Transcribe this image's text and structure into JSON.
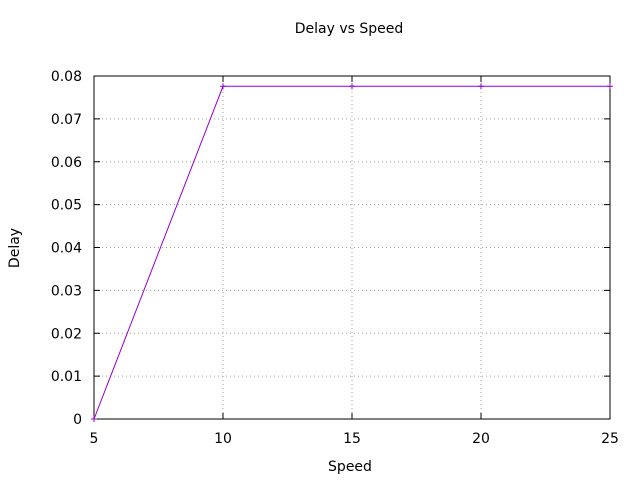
{
  "chart_data": {
    "type": "line",
    "title": "Delay vs Speed",
    "xlabel": "Speed",
    "ylabel": "Delay",
    "xlim": [
      5,
      25
    ],
    "ylim": [
      0,
      0.08
    ],
    "xticks": [
      5,
      10,
      15,
      20,
      25
    ],
    "xtick_labels": [
      "5",
      "10",
      "15",
      "20",
      "25"
    ],
    "yticks": [
      0,
      0.01,
      0.02,
      0.03,
      0.04,
      0.05,
      0.06,
      0.07,
      0.08
    ],
    "ytick_labels": [
      "0",
      "0.01",
      "0.02",
      "0.03",
      "0.04",
      "0.05",
      "0.06",
      "0.07",
      "0.08"
    ],
    "grid": true,
    "legend": "none",
    "series": [
      {
        "color": "#9400d3",
        "x": [
          5,
          10,
          15,
          20,
          25
        ],
        "y": [
          0,
          0.0776,
          0.0776,
          0.0776,
          0.0776
        ]
      }
    ]
  }
}
